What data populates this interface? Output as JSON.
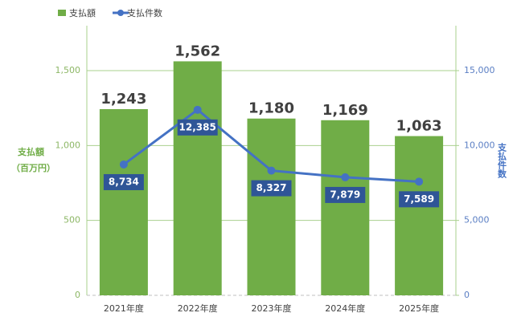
{
  "chart_data": {
    "type": "bar",
    "categories": [
      "2021年度",
      "2022年度",
      "2023年度",
      "2024年度",
      "2025年度"
    ],
    "series": [
      {
        "name": "支払額",
        "type": "bar",
        "color": "#70ad47",
        "values": [
          1243,
          1562,
          1180,
          1169,
          1063
        ],
        "value_labels": [
          "1,243",
          "1,562",
          "1,180",
          "1,169",
          "1,063"
        ]
      },
      {
        "name": "支払件数",
        "type": "line",
        "axis": "y2",
        "color": "#4472c4",
        "values": [
          8734,
          12385,
          8327,
          7879,
          7589
        ],
        "value_labels": [
          "8,734",
          "12,385",
          "8,327",
          "7,879",
          "7,589"
        ]
      }
    ],
    "ylabel": "支払額",
    "ylabel_unit": "（百万円）",
    "y2label": "支払件数",
    "ylim": [
      0,
      1800
    ],
    "yticks": [
      0,
      500,
      {
        "value": 1000,
        "label": "1,000"
      },
      {
        "value": 1500,
        "label": "1,500"
      }
    ],
    "y2lim": [
      0,
      18000
    ],
    "y2ticks": [
      0,
      {
        "value": 5000,
        "label": "5,000"
      },
      {
        "value": 10000,
        "label": "10,000"
      },
      {
        "value": 15000,
        "label": "15,000"
      }
    ],
    "grid": true,
    "legend": "top-left"
  }
}
